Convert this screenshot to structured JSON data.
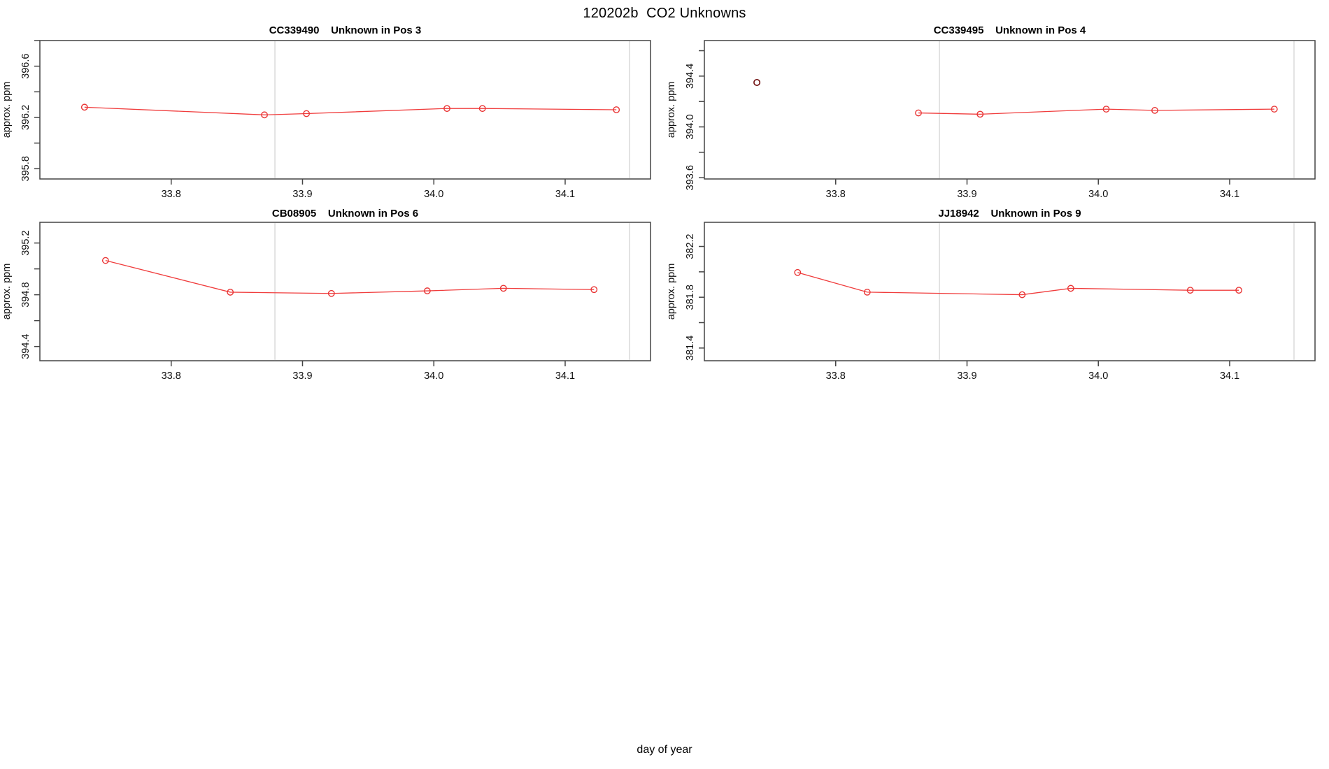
{
  "page_title": "120202b  CO2 Unknowns",
  "xlabel": "day of year",
  "ylabel": "approx. ppm",
  "colors": {
    "line": "#f03c3c",
    "marker": "#e93535",
    "dark_point": "#6e0d0d",
    "vline": "#dcdcdc",
    "axis": "#444444",
    "text": "#111111"
  },
  "chart_data": [
    {
      "type": "line",
      "title": "CC339490    Unknown in Pos 3",
      "sample_id": "CC339490",
      "position": "Pos 3",
      "ylabel": "approx. ppm",
      "x": [
        33.734,
        33.871,
        33.903,
        34.01,
        34.037,
        34.139
      ],
      "y": [
        396.28,
        396.22,
        396.23,
        396.27,
        396.27,
        396.26
      ],
      "isolated_points": [],
      "xlim": [
        33.7,
        34.165
      ],
      "ylim": [
        395.72,
        396.8
      ],
      "xticks": [
        {
          "v": 33.8,
          "label": "33.8"
        },
        {
          "v": 33.9,
          "label": "33.9"
        },
        {
          "v": 34.0,
          "label": "34.0"
        },
        {
          "v": 34.1,
          "label": "34.1"
        }
      ],
      "yticks": [
        {
          "v": 395.8,
          "label": "395.8"
        },
        {
          "v": 396.0,
          "label": ""
        },
        {
          "v": 396.2,
          "label": "396.2"
        },
        {
          "v": 396.4,
          "label": ""
        },
        {
          "v": 396.6,
          "label": "396.6"
        },
        {
          "v": 396.8,
          "label": ""
        }
      ],
      "vlines": [
        33.879,
        34.149
      ],
      "grid": "off",
      "legend": "none"
    },
    {
      "type": "line",
      "title": "CC339495    Unknown in Pos 4",
      "sample_id": "CC339495",
      "position": "Pos 4",
      "ylabel": "approx. ppm",
      "x": [
        33.863,
        33.91,
        34.006,
        34.043,
        34.134
      ],
      "y": [
        394.11,
        394.1,
        394.14,
        394.13,
        394.14
      ],
      "isolated_points": [
        {
          "x": 33.74,
          "y": 394.35
        }
      ],
      "xlim": [
        33.7,
        34.165
      ],
      "ylim": [
        393.59,
        394.68
      ],
      "xticks": [
        {
          "v": 33.8,
          "label": "33.8"
        },
        {
          "v": 33.9,
          "label": "33.9"
        },
        {
          "v": 34.0,
          "label": "34.0"
        },
        {
          "v": 34.1,
          "label": "34.1"
        }
      ],
      "yticks": [
        {
          "v": 393.6,
          "label": "393.6"
        },
        {
          "v": 393.8,
          "label": ""
        },
        {
          "v": 394.0,
          "label": "394.0"
        },
        {
          "v": 394.2,
          "label": ""
        },
        {
          "v": 394.4,
          "label": "394.4"
        },
        {
          "v": 394.6,
          "label": ""
        }
      ],
      "vlines": [
        33.879,
        34.149
      ],
      "grid": "off",
      "legend": "none"
    },
    {
      "type": "line",
      "title": "CB08905    Unknown in Pos 6",
      "sample_id": "CB08905",
      "position": "Pos 6",
      "ylabel": "approx. ppm",
      "x": [
        33.75,
        33.845,
        33.922,
        33.995,
        34.053,
        34.122
      ],
      "y": [
        395.065,
        394.82,
        394.81,
        394.83,
        394.85,
        394.84
      ],
      "isolated_points": [],
      "xlim": [
        33.7,
        34.165
      ],
      "ylim": [
        394.29,
        395.36
      ],
      "xticks": [
        {
          "v": 33.8,
          "label": "33.8"
        },
        {
          "v": 33.9,
          "label": "33.9"
        },
        {
          "v": 34.0,
          "label": "34.0"
        },
        {
          "v": 34.1,
          "label": "34.1"
        }
      ],
      "yticks": [
        {
          "v": 394.4,
          "label": "394.4"
        },
        {
          "v": 394.6,
          "label": ""
        },
        {
          "v": 394.8,
          "label": "394.8"
        },
        {
          "v": 395.0,
          "label": ""
        },
        {
          "v": 395.2,
          "label": "395.2"
        }
      ],
      "vlines": [
        33.879,
        34.149
      ],
      "grid": "off",
      "legend": "none"
    },
    {
      "type": "line",
      "title": "JJ18942    Unknown in Pos 9",
      "sample_id": "JJ18942",
      "position": "Pos 9",
      "ylabel": "approx. ppm",
      "x": [
        33.771,
        33.824,
        33.942,
        33.979,
        34.07,
        34.107
      ],
      "y": [
        381.995,
        381.84,
        381.82,
        381.87,
        381.855,
        381.855
      ],
      "isolated_points": [],
      "xlim": [
        33.7,
        34.165
      ],
      "ylim": [
        381.3,
        382.39
      ],
      "xticks": [
        {
          "v": 33.8,
          "label": "33.8"
        },
        {
          "v": 33.9,
          "label": "33.9"
        },
        {
          "v": 34.0,
          "label": "34.0"
        },
        {
          "v": 34.1,
          "label": "34.1"
        }
      ],
      "yticks": [
        {
          "v": 381.4,
          "label": "381.4"
        },
        {
          "v": 381.6,
          "label": ""
        },
        {
          "v": 381.8,
          "label": "381.8"
        },
        {
          "v": 382.0,
          "label": ""
        },
        {
          "v": 382.2,
          "label": "382.2"
        }
      ],
      "vlines": [
        33.879,
        34.149
      ],
      "grid": "off",
      "legend": "none"
    }
  ]
}
